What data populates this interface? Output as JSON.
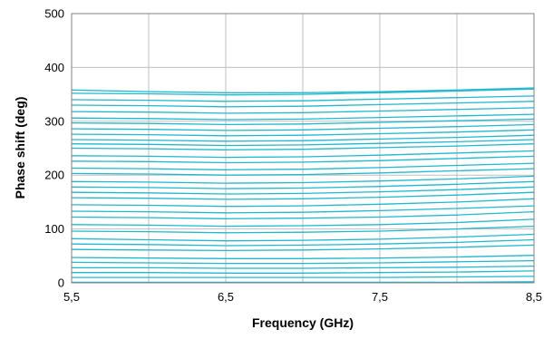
{
  "chart_data": {
    "type": "line",
    "title": "",
    "xlabel": "Frequency (GHz)",
    "ylabel": "Phase shift (deg)",
    "xlim": [
      5.5,
      8.5
    ],
    "ylim": [
      0,
      500
    ],
    "x_ticks": [
      5.5,
      6.0,
      6.5,
      7.0,
      7.5,
      8.0,
      8.5
    ],
    "x_tick_labels": [
      "5,5",
      "",
      "6,5",
      "",
      "7,5",
      "",
      "8,5"
    ],
    "y_ticks": [
      0,
      100,
      200,
      300,
      400,
      500
    ],
    "y_tick_labels": [
      "0",
      "100",
      "200",
      "300",
      "400",
      "500"
    ],
    "grid": true,
    "legend": "none",
    "series_color": "#1fb8cf",
    "x": [
      5.5,
      6.0,
      6.5,
      7.0,
      7.5,
      8.0,
      8.5
    ],
    "series": [
      {
        "values": [
          1,
          1,
          1,
          1,
          1,
          1,
          2
        ]
      },
      {
        "values": [
          10,
          10,
          10,
          10,
          10,
          11,
          12
        ]
      },
      {
        "values": [
          19,
          19,
          18,
          18,
          19,
          20,
          22
        ]
      },
      {
        "values": [
          28,
          28,
          27,
          27,
          28,
          29,
          31
        ]
      },
      {
        "values": [
          38,
          37,
          36,
          36,
          37,
          39,
          41
        ]
      },
      {
        "values": [
          47,
          46,
          45,
          45,
          46,
          48,
          51
        ]
      },
      {
        "values": [
          62,
          61,
          60,
          61,
          63,
          66,
          70
        ]
      },
      {
        "values": [
          72,
          71,
          69,
          70,
          72,
          75,
          80
        ]
      },
      {
        "values": [
          82,
          80,
          78,
          79,
          81,
          85,
          90
        ]
      },
      {
        "values": [
          96,
          95,
          93,
          94,
          96,
          100,
          105
        ]
      },
      {
        "values": [
          108,
          107,
          105,
          106,
          108,
          112,
          118
        ]
      },
      {
        "values": [
          122,
          121,
          119,
          120,
          122,
          126,
          132
        ]
      },
      {
        "values": [
          133,
          132,
          130,
          131,
          134,
          138,
          143
        ]
      },
      {
        "values": [
          145,
          144,
          142,
          143,
          146,
          150,
          156
        ]
      },
      {
        "values": [
          158,
          157,
          155,
          156,
          159,
          163,
          168
        ]
      },
      {
        "values": [
          168,
          167,
          165,
          166,
          169,
          173,
          178
        ]
      },
      {
        "values": [
          178,
          177,
          175,
          176,
          179,
          183,
          188
        ]
      },
      {
        "values": [
          188,
          187,
          185,
          186,
          189,
          193,
          198
        ]
      },
      {
        "values": [
          203,
          202,
          200,
          201,
          204,
          208,
          212
        ]
      },
      {
        "values": [
          213,
          212,
          210,
          211,
          214,
          218,
          222
        ]
      },
      {
        "values": [
          226,
          225,
          223,
          224,
          227,
          231,
          235
        ]
      },
      {
        "values": [
          236,
          235,
          233,
          234,
          237,
          241,
          245
        ]
      },
      {
        "values": [
          250,
          249,
          247,
          248,
          251,
          254,
          258
        ]
      },
      {
        "values": [
          258,
          257,
          255,
          256,
          259,
          262,
          266
        ]
      },
      {
        "values": [
          266,
          265,
          263,
          264,
          267,
          270,
          274
        ]
      },
      {
        "values": [
          276,
          275,
          273,
          274,
          277,
          280,
          284
        ]
      },
      {
        "values": [
          286,
          285,
          283,
          284,
          287,
          290,
          294
        ]
      },
      {
        "values": [
          297,
          296,
          294,
          295,
          298,
          301,
          304
        ]
      },
      {
        "values": [
          306,
          305,
          303,
          304,
          307,
          310,
          313
        ]
      },
      {
        "values": [
          318,
          317,
          315,
          316,
          319,
          322,
          325
        ]
      },
      {
        "values": [
          330,
          329,
          327,
          328,
          331,
          334,
          337
        ]
      },
      {
        "values": [
          340,
          339,
          337,
          338,
          341,
          344,
          347
        ]
      },
      {
        "values": [
          352,
          351,
          349,
          350,
          353,
          356,
          360
        ]
      },
      {
        "values": [
          358,
          355,
          353,
          353,
          355,
          358,
          362
        ]
      }
    ]
  }
}
